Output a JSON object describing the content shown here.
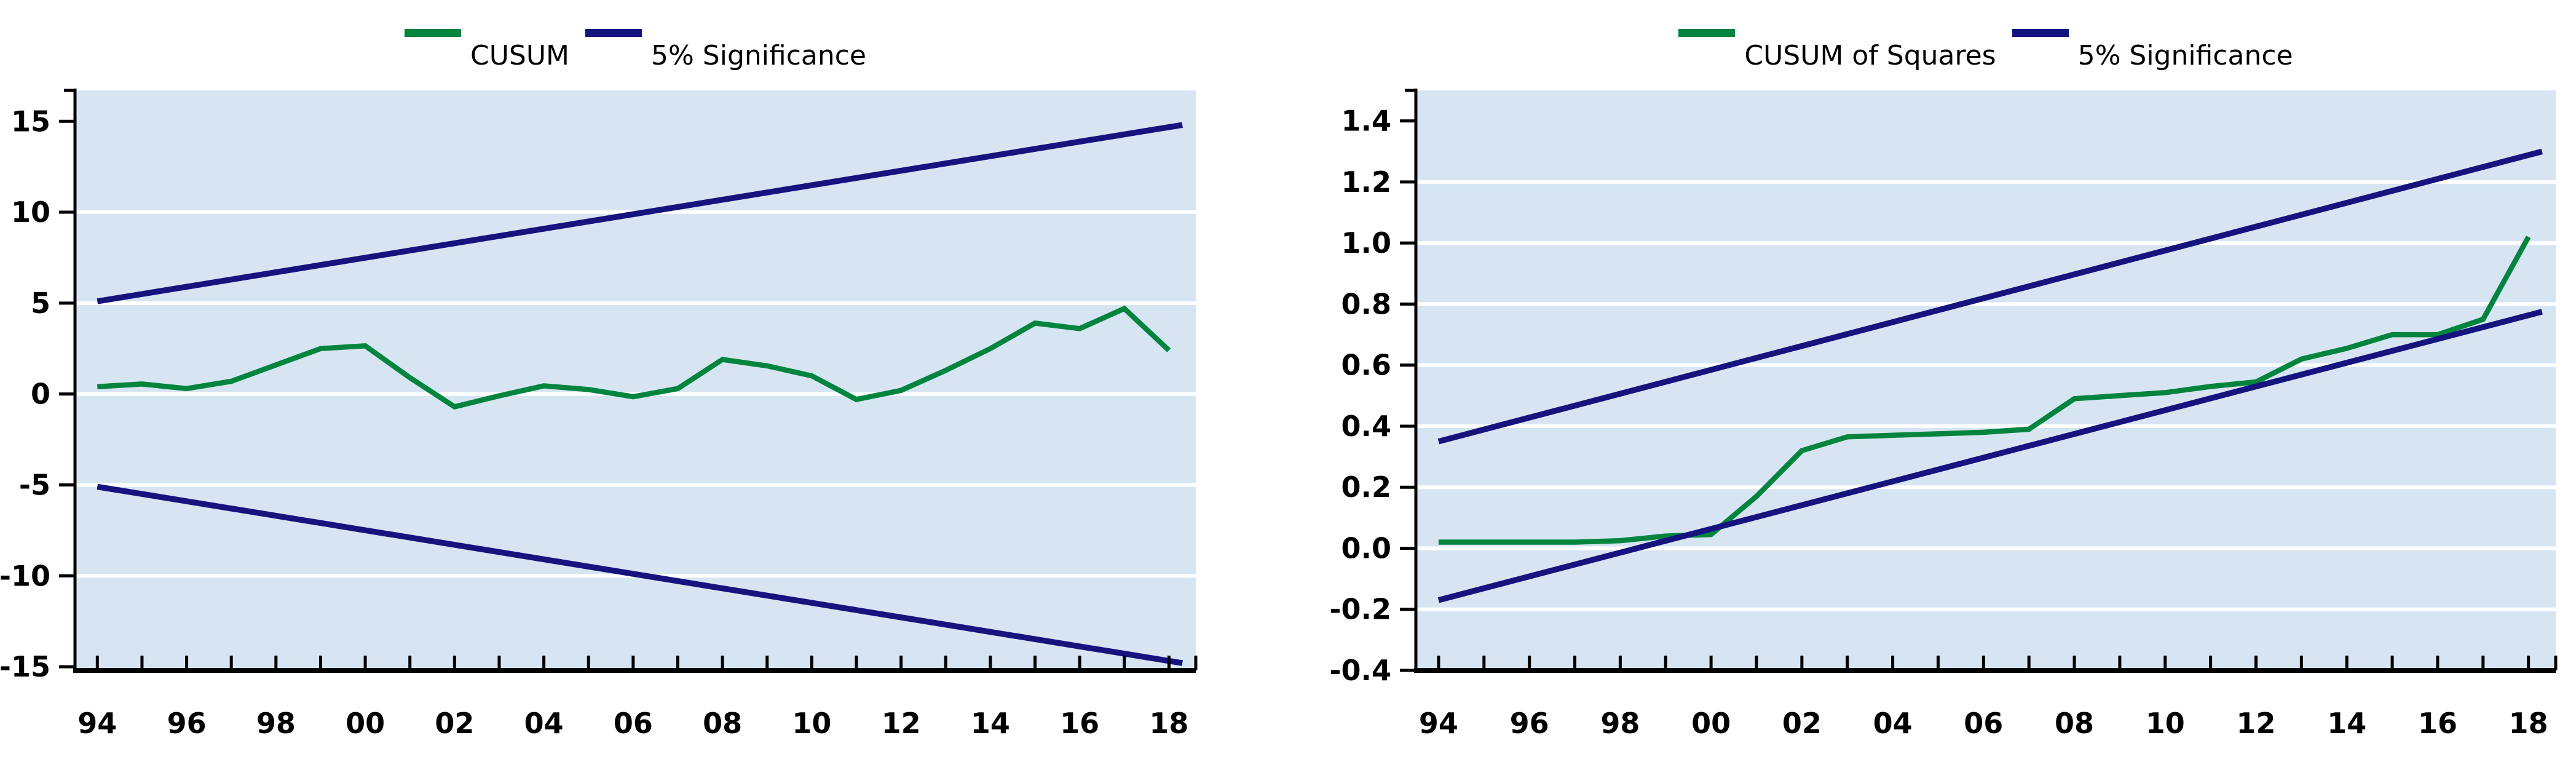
{
  "page": {
    "background": "#ffffff"
  },
  "colors": {
    "plot_background": "#d7e5f3",
    "gridline": "#ffffff",
    "axis": "#000000",
    "text": "#000000",
    "series_green": "#00843e",
    "series_navy": "#15147e"
  },
  "chart_data": [
    {
      "id": "cusum",
      "type": "line",
      "title": "",
      "xlabel": "",
      "ylabel": "",
      "grid": "horizontal-white-gridlines",
      "legend_position": "top-center",
      "legend": [
        {
          "label": "CUSUM",
          "color": "#00843e"
        },
        {
          "label": "5% Significance",
          "color": "#15147e"
        }
      ],
      "xlim": [
        1993.5,
        2018.6
      ],
      "ylim": [
        -15.2,
        16.7
      ],
      "yticks": [
        15,
        10,
        5,
        0,
        -5,
        -10,
        -15
      ],
      "ytick_labels": [
        "15",
        "10",
        "5",
        "0",
        "-5",
        "-10",
        "-15"
      ],
      "gridline_values": [
        10,
        5,
        0,
        -5,
        -10
      ],
      "x_tick_years": [
        1994,
        1995,
        1996,
        1997,
        1998,
        1999,
        2000,
        2001,
        2002,
        2003,
        2004,
        2005,
        2006,
        2007,
        2008,
        2009,
        2010,
        2011,
        2012,
        2013,
        2014,
        2015,
        2016,
        2017,
        2018
      ],
      "xtick_label_years": [
        1994,
        1996,
        1998,
        2000,
        2002,
        2004,
        2006,
        2008,
        2010,
        2012,
        2014,
        2016,
        2018
      ],
      "xtick_labels": [
        "94",
        "96",
        "98",
        "00",
        "02",
        "04",
        "06",
        "08",
        "10",
        "12",
        "14",
        "16",
        "18"
      ],
      "series": [
        {
          "name": "CUSUM",
          "color": "#00843e",
          "x": [
            1994,
            1995,
            1996,
            1997,
            1998,
            1999,
            2000,
            2001,
            2002,
            2003,
            2004,
            2005,
            2006,
            2007,
            2008,
            2009,
            2010,
            2011,
            2012,
            2013,
            2014,
            2015,
            2016,
            2017,
            2018
          ],
          "values": [
            0.4,
            0.55,
            0.3,
            0.7,
            1.6,
            2.5,
            2.65,
            0.9,
            -0.7,
            -0.1,
            0.45,
            0.25,
            -0.15,
            0.3,
            1.9,
            1.55,
            1.0,
            -0.3,
            0.2,
            1.3,
            2.5,
            3.9,
            3.6,
            4.7,
            2.4
          ]
        },
        {
          "name": "5% Significance (upper)",
          "color": "#15147e",
          "x": [
            1994,
            2018.3
          ],
          "values": [
            5.1,
            14.8
          ]
        },
        {
          "name": "5% Significance (lower)",
          "color": "#15147e",
          "x": [
            1994,
            2018.3
          ],
          "values": [
            -5.1,
            -14.8
          ]
        }
      ]
    },
    {
      "id": "cusum_of_squares",
      "type": "line",
      "title": "",
      "xlabel": "",
      "ylabel": "",
      "grid": "horizontal-white-gridlines",
      "legend_position": "top-center",
      "legend": [
        {
          "label": "CUSUM of Squares",
          "color": "#00843e"
        },
        {
          "label": "5% Significance",
          "color": "#15147e"
        }
      ],
      "xlim": [
        1993.5,
        2018.6
      ],
      "ylim": [
        -0.4,
        1.5
      ],
      "yticks": [
        1.4,
        1.2,
        1.0,
        0.8,
        0.6,
        0.4,
        0.2,
        0.0,
        -0.2,
        -0.4
      ],
      "ytick_labels": [
        "1.4",
        "1.2",
        "1.0",
        "0.8",
        "0.6",
        "0.4",
        "0.2",
        "0.0",
        "-0.2",
        "-0.4"
      ],
      "gridline_values": [
        1.2,
        1.0,
        0.8,
        0.6,
        0.4,
        0.2,
        0.0,
        -0.2
      ],
      "x_tick_years": [
        1994,
        1995,
        1996,
        1997,
        1998,
        1999,
        2000,
        2001,
        2002,
        2003,
        2004,
        2005,
        2006,
        2007,
        2008,
        2009,
        2010,
        2011,
        2012,
        2013,
        2014,
        2015,
        2016,
        2017,
        2018
      ],
      "xtick_label_years": [
        1994,
        1996,
        1998,
        2000,
        2002,
        2004,
        2006,
        2008,
        2010,
        2012,
        2014,
        2016,
        2018
      ],
      "xtick_labels": [
        "94",
        "96",
        "98",
        "00",
        "02",
        "04",
        "06",
        "08",
        "10",
        "12",
        "14",
        "16",
        "18"
      ],
      "series": [
        {
          "name": "CUSUM of Squares",
          "color": "#00843e",
          "x": [
            1994,
            1995,
            1996,
            1997,
            1998,
            1999,
            2000,
            2001,
            2002,
            2003,
            2004,
            2005,
            2006,
            2007,
            2008,
            2009,
            2010,
            2011,
            2012,
            2013,
            2014,
            2015,
            2016,
            2017,
            2018
          ],
          "values": [
            0.02,
            0.02,
            0.02,
            0.02,
            0.025,
            0.04,
            0.045,
            0.17,
            0.32,
            0.365,
            0.37,
            0.375,
            0.38,
            0.39,
            0.49,
            0.5,
            0.51,
            0.53,
            0.545,
            0.62,
            0.655,
            0.7,
            0.7,
            0.75,
            1.02
          ]
        },
        {
          "name": "5% Significance (upper)",
          "color": "#15147e",
          "x": [
            1994,
            2018.3
          ],
          "values": [
            0.35,
            1.3
          ]
        },
        {
          "name": "5% Significance (lower)",
          "color": "#15147e",
          "x": [
            1994,
            2018.3
          ],
          "values": [
            -0.17,
            0.775
          ]
        }
      ]
    }
  ]
}
